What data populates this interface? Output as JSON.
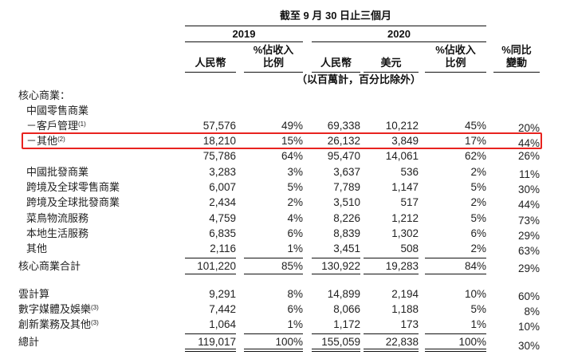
{
  "header": {
    "period_title": "截至 9 月 30 日止三個月",
    "year_2019": "2019",
    "year_2020": "2020",
    "units_note": "（以百萬計，百分比除外）",
    "columns": [
      {
        "key": "rmb_2019",
        "line1": "",
        "line2": "人民幣"
      },
      {
        "key": "pct_2019",
        "line1": "%佔收入",
        "line2": "比例"
      },
      {
        "key": "rmb_2020",
        "line1": "",
        "line2": "人民幣"
      },
      {
        "key": "usd_2020",
        "line1": "",
        "line2": "美元"
      },
      {
        "key": "pct_2020",
        "line1": "%佔收入",
        "line2": "比例"
      },
      {
        "key": "yoy",
        "line1": "%同比",
        "line2": "變動"
      }
    ]
  },
  "highlight": {
    "row_label": "－其他",
    "color": "#e8231f"
  },
  "rows": [
    {
      "label": "核心商業：",
      "sup": "",
      "indent": 0,
      "values": [
        "",
        "",
        "",
        "",
        "",
        ""
      ]
    },
    {
      "label": "中國零售商業",
      "sup": "",
      "indent": 1,
      "values": [
        "",
        "",
        "",
        "",
        "",
        ""
      ]
    },
    {
      "label": "－客戶管理",
      "sup": "(1)",
      "indent": 1,
      "values": [
        "57,576",
        "49%",
        "69,338",
        "10,212",
        "45%",
        "20%"
      ]
    },
    {
      "label": "－其他",
      "sup": "(2)",
      "indent": 1,
      "values": [
        "18,210",
        "15%",
        "26,132",
        "3,849",
        "17%",
        "44%"
      ]
    },
    {
      "label": "",
      "sup": "",
      "indent": 1,
      "values": [
        "75,786",
        "64%",
        "95,470",
        "14,061",
        "62%",
        "26%"
      ]
    },
    {
      "label": "中國批發商業",
      "sup": "",
      "indent": 1,
      "values": [
        "3,283",
        "3%",
        "3,637",
        "536",
        "2%",
        "11%"
      ]
    },
    {
      "label": "跨境及全球零售商業",
      "sup": "",
      "indent": 1,
      "values": [
        "6,007",
        "5%",
        "7,789",
        "1,147",
        "5%",
        "30%"
      ]
    },
    {
      "label": "跨境及全球批發商業",
      "sup": "",
      "indent": 1,
      "values": [
        "2,434",
        "2%",
        "3,510",
        "517",
        "2%",
        "44%"
      ]
    },
    {
      "label": "菜鳥物流服務",
      "sup": "",
      "indent": 1,
      "values": [
        "4,759",
        "4%",
        "8,226",
        "1,212",
        "5%",
        "73%"
      ]
    },
    {
      "label": "本地生活服務",
      "sup": "",
      "indent": 1,
      "values": [
        "6,835",
        "6%",
        "8,839",
        "1,302",
        "6%",
        "29%"
      ]
    },
    {
      "label": "其他",
      "sup": "",
      "indent": 1,
      "values": [
        "2,116",
        "1%",
        "3,451",
        "508",
        "2%",
        "63%"
      ]
    },
    {
      "label": "核心商業合計",
      "sup": "",
      "indent": 0,
      "values": [
        "101,220",
        "85%",
        "130,922",
        "19,283",
        "84%",
        "29%"
      ]
    },
    {
      "label": "雲計算",
      "sup": "",
      "indent": 0,
      "values": [
        "9,291",
        "8%",
        "14,899",
        "2,194",
        "10%",
        "60%"
      ]
    },
    {
      "label": "數字媒體及娛樂",
      "sup": "(3)",
      "indent": 0,
      "values": [
        "7,442",
        "6%",
        "8,066",
        "1,188",
        "5%",
        "8%"
      ]
    },
    {
      "label": "創新業務及其他",
      "sup": "(3)",
      "indent": 0,
      "values": [
        "1,064",
        "1%",
        "1,172",
        "173",
        "1%",
        "10%"
      ]
    },
    {
      "label": "總計",
      "sup": "",
      "indent": 0,
      "values": [
        "119,017",
        "100%",
        "155,059",
        "22,838",
        "100%",
        "30%"
      ]
    }
  ]
}
